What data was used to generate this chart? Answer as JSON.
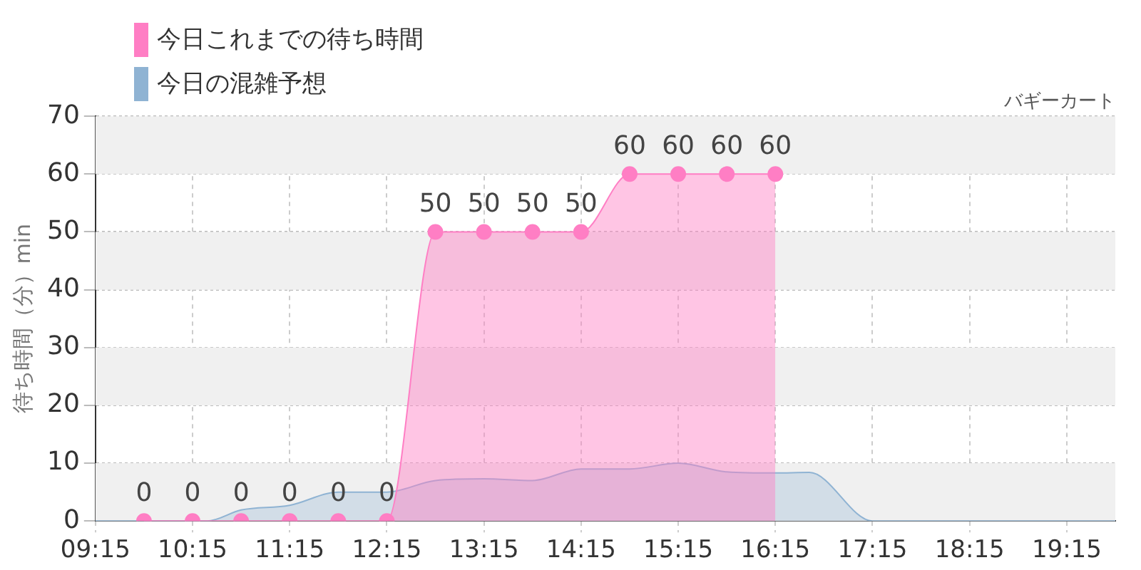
{
  "chart_data": {
    "type": "area",
    "subtitle": "バギーカート",
    "ylabel": "待ち時間（分）min",
    "xlim": [
      9.25,
      19.75
    ],
    "xticks": [
      {
        "value": 9.25,
        "label": "09:15"
      },
      {
        "value": 10.25,
        "label": "10:15"
      },
      {
        "value": 11.25,
        "label": "11:15"
      },
      {
        "value": 12.25,
        "label": "12:15"
      },
      {
        "value": 13.25,
        "label": "13:15"
      },
      {
        "value": 14.25,
        "label": "14:15"
      },
      {
        "value": 15.25,
        "label": "15:15"
      },
      {
        "value": 16.25,
        "label": "16:15"
      },
      {
        "value": 17.25,
        "label": "17:15"
      },
      {
        "value": 18.25,
        "label": "18:15"
      },
      {
        "value": 19.25,
        "label": "19:15"
      }
    ],
    "ylim": [
      0,
      70
    ],
    "yticks": [
      0,
      10,
      20,
      30,
      40,
      50,
      60,
      70
    ],
    "grid": true,
    "legend": "top left",
    "series": [
      {
        "name": "今日これまでの待ち時間",
        "color": "#ff7ec4",
        "marker": "circle",
        "x": [
          9.75,
          10.25,
          10.75,
          11.25,
          11.75,
          12.25,
          12.75,
          13.25,
          13.75,
          14.25,
          14.75,
          15.25,
          15.75,
          16.25
        ],
        "values": [
          0,
          0,
          0,
          0,
          0,
          0,
          50,
          50,
          50,
          50,
          60,
          60,
          60,
          60
        ],
        "value_labels": [
          "0",
          "0",
          "0",
          "0",
          "0",
          "0",
          "50",
          "50",
          "50",
          "50",
          "60",
          "60",
          "60",
          "60"
        ]
      },
      {
        "name": "今日の混雑予想",
        "color": "#8fb3d3",
        "marker": "none",
        "x": [
          9.25,
          10.25,
          10.4,
          10.75,
          11.25,
          11.75,
          12.25,
          12.75,
          13.25,
          13.75,
          14.25,
          14.75,
          15.25,
          15.75,
          16.25,
          16.6,
          17.25,
          17.75,
          18.25,
          18.75,
          19.25,
          19.75
        ],
        "values": [
          0,
          0,
          0,
          1.9,
          2.7,
          5,
          5,
          7,
          7.3,
          7,
          9,
          9,
          10,
          8.5,
          8.3,
          8.4,
          0,
          0,
          0,
          0,
          0,
          0
        ]
      }
    ]
  }
}
